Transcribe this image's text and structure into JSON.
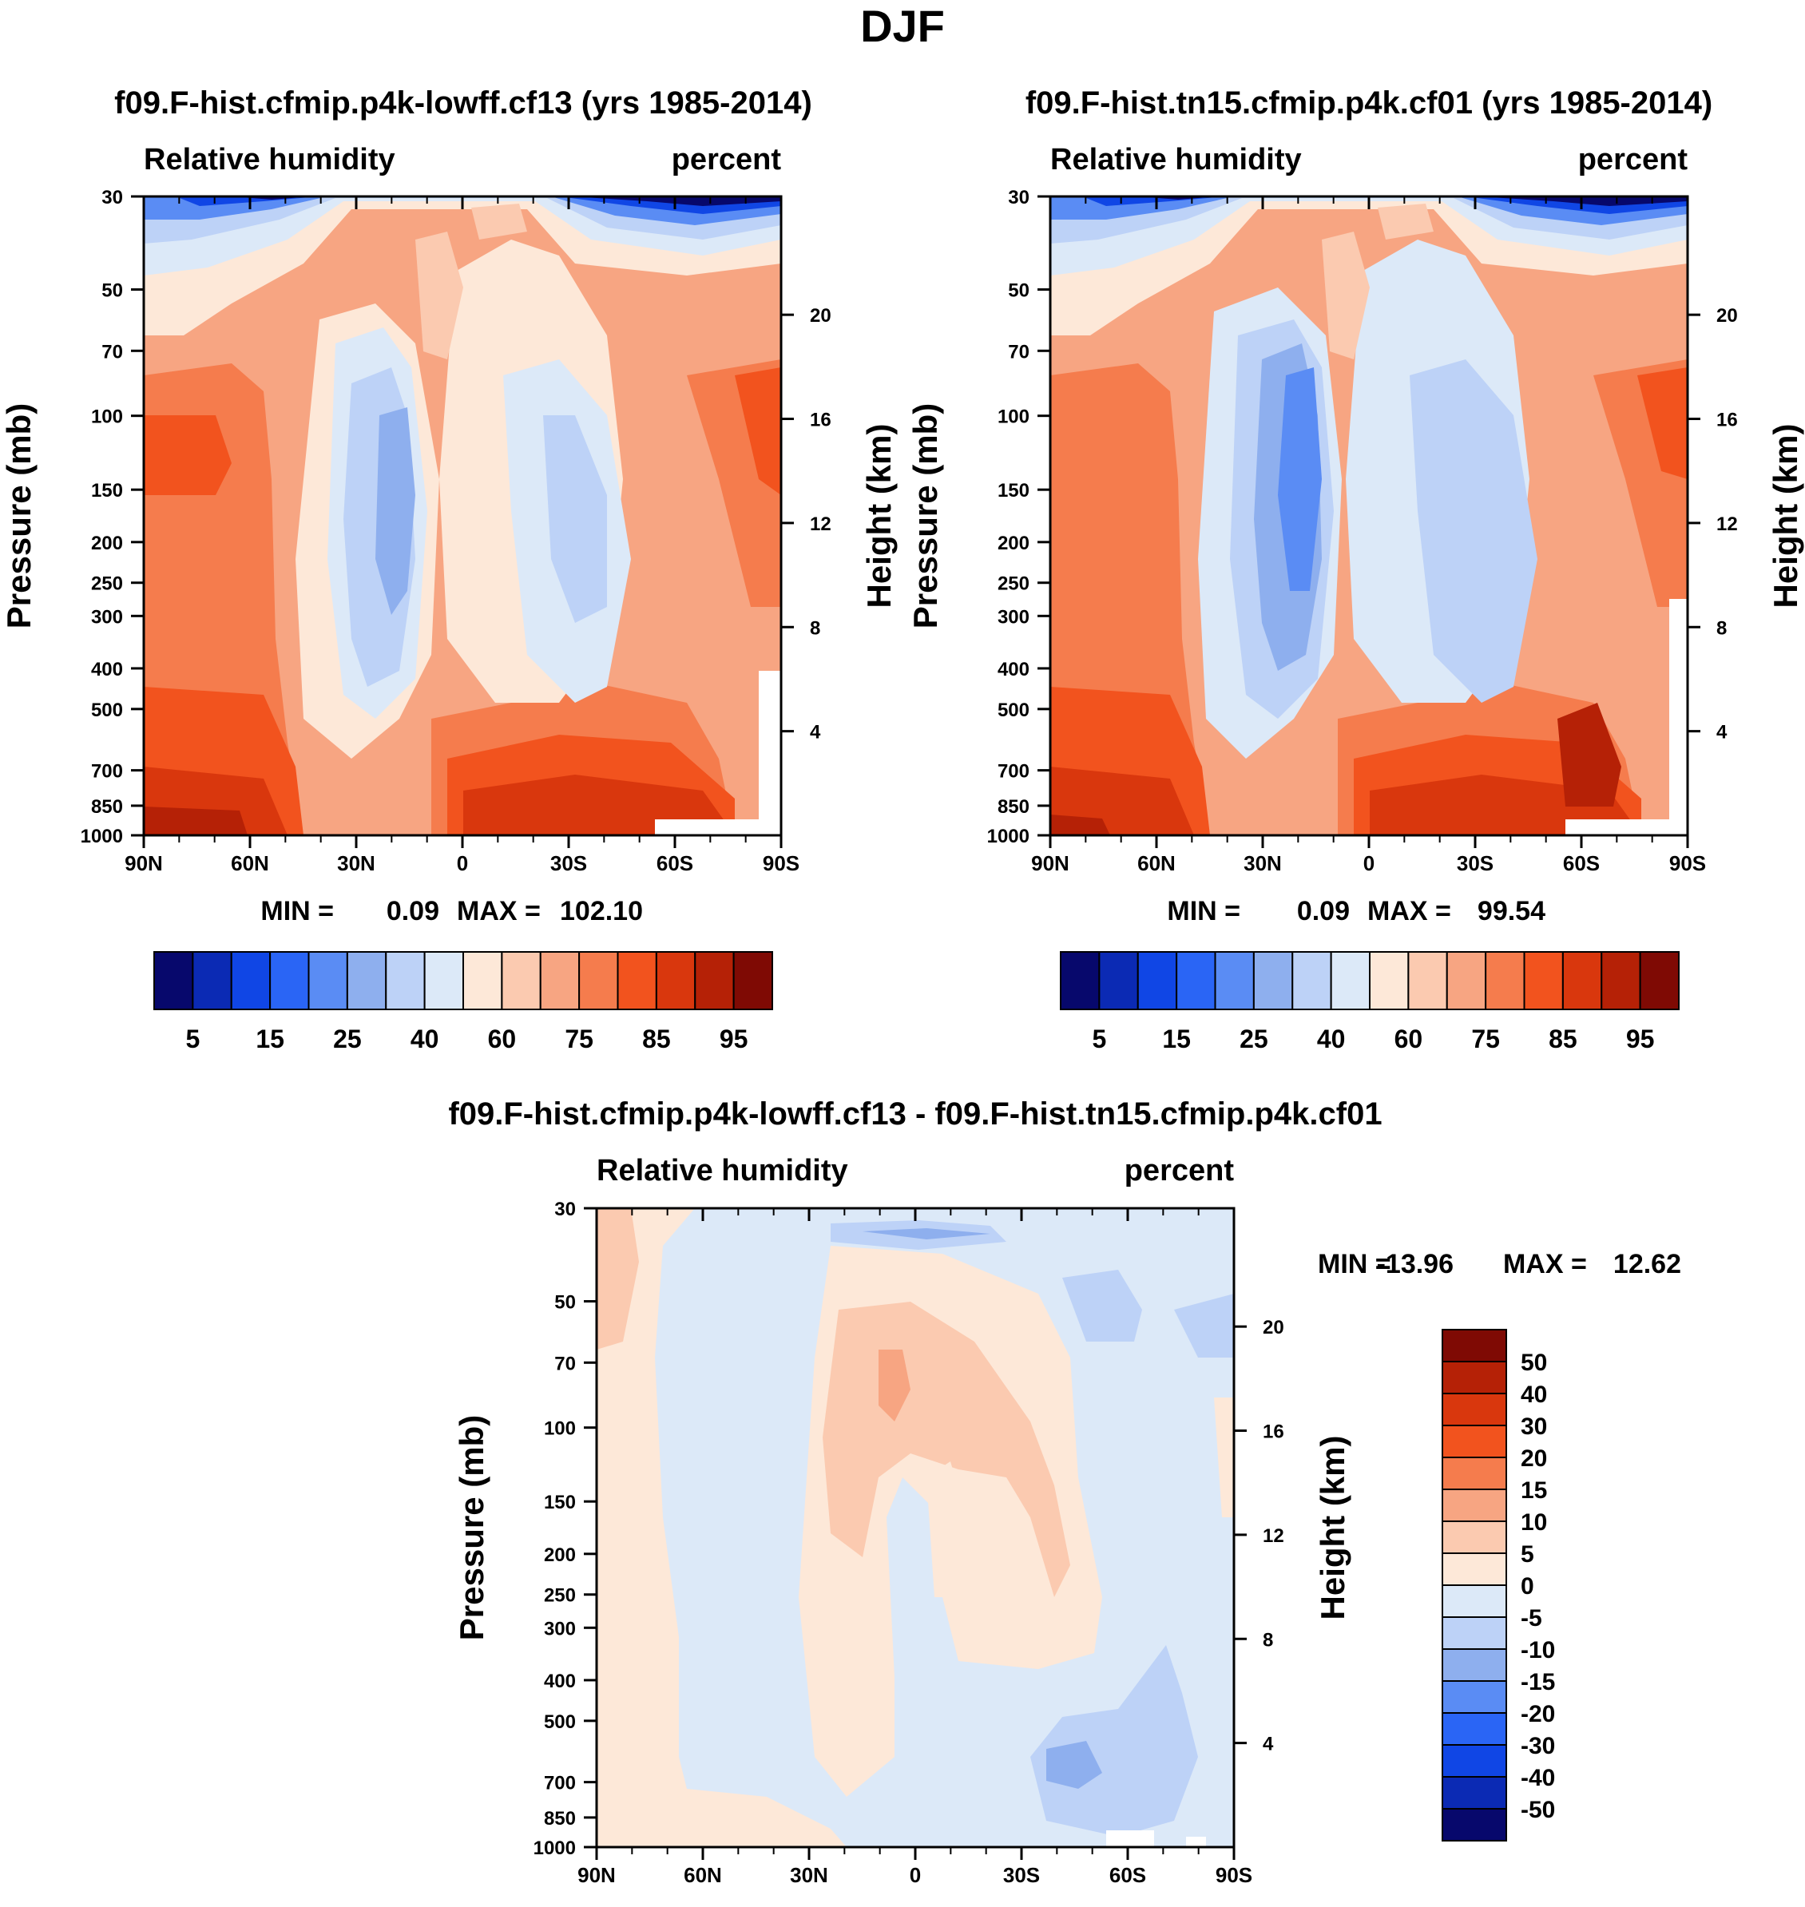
{
  "page_title": "DJF",
  "chart_data": [
    {
      "type": "heatmap",
      "title": "f09.F-hist.cfmip.p4k-lowff.cf13 (yrs 1985-2014)",
      "variable": "Relative humidity",
      "units": "percent",
      "ylabel": "Pressure (mb)",
      "ylabel_right": "Height (km)",
      "x_ticks": [
        "90N",
        "60N",
        "30N",
        "0",
        "30S",
        "60S",
        "90S"
      ],
      "y_ticks": [
        "30",
        "50",
        "70",
        "100",
        "150",
        "200",
        "250",
        "300",
        "400",
        "500",
        "700",
        "850",
        "1000"
      ],
      "height_ticks": [
        "20",
        "16",
        "12",
        "8",
        "4"
      ],
      "stats": {
        "min_label": "MIN =",
        "min": "0.09",
        "max_label": "MAX =",
        "max": "102.10"
      },
      "colorbar_labels": [
        "5",
        "15",
        "25",
        "40",
        "60",
        "75",
        "85",
        "95"
      ]
    },
    {
      "type": "heatmap",
      "title": "f09.F-hist.tn15.cfmip.p4k.cf01 (yrs 1985-2014)",
      "variable": "Relative humidity",
      "units": "percent",
      "ylabel": "Pressure (mb)",
      "ylabel_right": "Height (km)",
      "x_ticks": [
        "90N",
        "60N",
        "30N",
        "0",
        "30S",
        "60S",
        "90S"
      ],
      "y_ticks": [
        "30",
        "50",
        "70",
        "100",
        "150",
        "200",
        "250",
        "300",
        "400",
        "500",
        "700",
        "850",
        "1000"
      ],
      "height_ticks": [
        "20",
        "16",
        "12",
        "8",
        "4"
      ],
      "stats": {
        "min_label": "MIN =",
        "min": "0.09",
        "max_label": "MAX =",
        "max": "99.54"
      },
      "colorbar_labels": [
        "5",
        "15",
        "25",
        "40",
        "60",
        "75",
        "85",
        "95"
      ]
    },
    {
      "type": "heatmap",
      "title": "f09.F-hist.cfmip.p4k-lowff.cf13 - f09.F-hist.tn15.cfmip.p4k.cf01",
      "variable": "Relative humidity",
      "units": "percent",
      "ylabel": "Pressure (mb)",
      "ylabel_right": "Height (km)",
      "x_ticks": [
        "90N",
        "60N",
        "30N",
        "0",
        "30S",
        "60S",
        "90S"
      ],
      "y_ticks": [
        "30",
        "50",
        "70",
        "100",
        "150",
        "200",
        "250",
        "300",
        "400",
        "500",
        "700",
        "850",
        "1000"
      ],
      "height_ticks": [
        "20",
        "16",
        "12",
        "8",
        "4"
      ],
      "stats": {
        "min_label": "MIN =",
        "min": "-13.96",
        "max_label": "MAX =",
        "max": "12.62"
      },
      "colorbar_labels": [
        "50",
        "40",
        "30",
        "20",
        "15",
        "10",
        "5",
        "0",
        "-5",
        "-10",
        "-15",
        "-20",
        "-30",
        "-40",
        "-50"
      ]
    }
  ],
  "colors": {
    "rh_scale": [
      "#07086c",
      "#0b2ab4",
      "#1046e5",
      "#2a65f5",
      "#5a8cf4",
      "#8eafee",
      "#bdd2f7",
      "#dce9f8",
      "#fde8d8",
      "#fbcab0",
      "#f7a582",
      "#f57c4d",
      "#f2531e",
      "#d9370d",
      "#b52106",
      "#7f0a04"
    ],
    "diff_scale": [
      "#7f0a04",
      "#b52106",
      "#d9370d",
      "#f2531e",
      "#f57c4d",
      "#f7a582",
      "#fbcab0",
      "#fde8d8",
      "#dce9f8",
      "#bdd2f7",
      "#8eafee",
      "#5a8cf4",
      "#2a65f5",
      "#1046e5",
      "#0b2ab4",
      "#07086c"
    ]
  }
}
